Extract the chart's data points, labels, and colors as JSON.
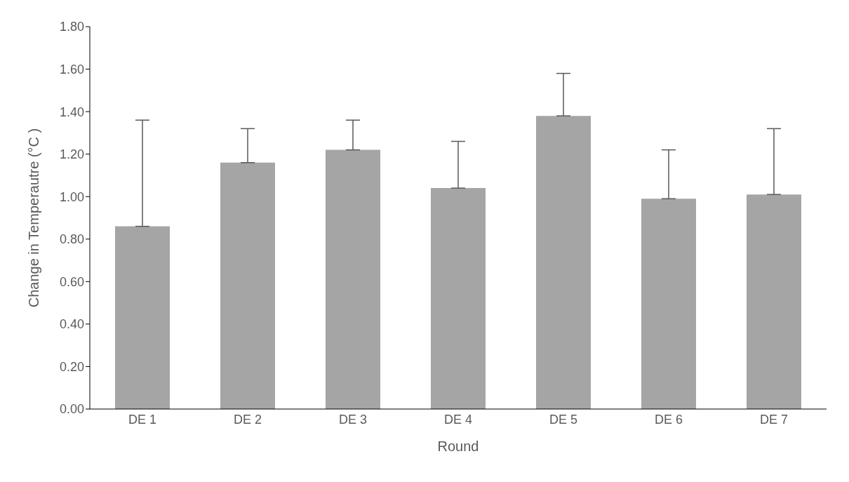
{
  "chart_data": {
    "type": "bar",
    "xlabel": "Round",
    "ylabel": "Change in Temperautre  (°C )",
    "categories": [
      "DE 1",
      "DE 2",
      "DE 3",
      "DE 4",
      "DE 5",
      "DE 6",
      "DE 7"
    ],
    "values": [
      0.86,
      1.16,
      1.22,
      1.04,
      1.38,
      0.99,
      1.01
    ],
    "errors": [
      [
        0.86,
        1.36
      ],
      [
        1.16,
        1.32
      ],
      [
        1.22,
        1.36
      ],
      [
        1.04,
        1.26
      ],
      [
        1.38,
        1.58
      ],
      [
        0.99,
        1.22
      ],
      [
        1.01,
        1.32
      ]
    ],
    "color": "#a5a5a5",
    "ylim": [
      0,
      1.8
    ],
    "yticks": [
      {
        "value": 0,
        "label": "0.00"
      },
      {
        "value": 0.2,
        "label": "0.20"
      },
      {
        "value": 0.4,
        "label": "0.40"
      },
      {
        "value": 0.6,
        "label": "0.60"
      },
      {
        "value": 0.8,
        "label": "0.80"
      },
      {
        "value": 1,
        "label": "1.00"
      },
      {
        "value": 1.2,
        "label": "1.20"
      },
      {
        "value": 1.4,
        "label": "1.40"
      },
      {
        "value": 1.6,
        "label": "1.60"
      },
      {
        "value": 1.8,
        "label": "1.80"
      }
    ],
    "grid": false,
    "legend": false
  }
}
